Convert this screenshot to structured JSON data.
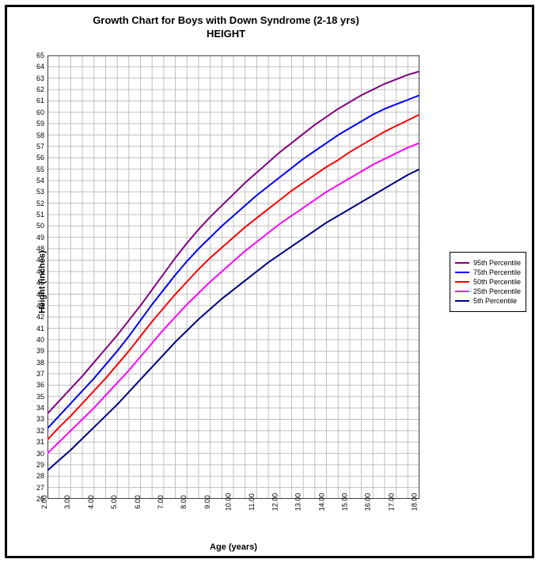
{
  "title_line1": "Growth Chart for Boys with Down Syndrome (2-18 yrs)",
  "title_line2": "HEIGHT",
  "xlabel": "Age (years)",
  "ylabel": "Height (inches)",
  "chart": {
    "type": "line",
    "background_color": "#ffffff",
    "grid_color": "#c0c0c0",
    "axis_color": "#000000",
    "line_width": 2,
    "xlim": [
      2,
      18
    ],
    "ylim": [
      26,
      65
    ],
    "xtick_step_major": 1,
    "xtick_step_minor": 0.5,
    "ytick_step_major": 1,
    "ytick_step_minor": 1,
    "title_fontsize": 13,
    "label_fontsize": 11,
    "tick_fontsize": 9,
    "x_tick_labels": [
      "2.00",
      "3.00",
      "4.00",
      "5.00",
      "6.00",
      "7.00",
      "8.00",
      "9.00",
      "10.00",
      "11.00",
      "12.00",
      "13.00",
      "14.00",
      "15.00",
      "16.00",
      "17.00",
      "18.00"
    ],
    "y_tick_labels": [
      "26",
      "27",
      "28",
      "29",
      "30",
      "31",
      "32",
      "33",
      "34",
      "35",
      "36",
      "37",
      "38",
      "39",
      "40",
      "41",
      "42",
      "43",
      "44",
      "45",
      "46",
      "47",
      "48",
      "49",
      "50",
      "51",
      "52",
      "53",
      "54",
      "55",
      "56",
      "57",
      "58",
      "59",
      "60",
      "61",
      "62",
      "63",
      "64",
      "65"
    ],
    "series": [
      {
        "name": "95th Percentile",
        "color": "#800080",
        "x": [
          2,
          2.5,
          3,
          3.5,
          4,
          4.5,
          5,
          5.5,
          6,
          6.5,
          7,
          7.5,
          8,
          8.5,
          9,
          9.5,
          10,
          10.5,
          11,
          11.5,
          12,
          12.5,
          13,
          13.5,
          14,
          14.5,
          15,
          15.5,
          16,
          16.5,
          17,
          17.5,
          18
        ],
        "y": [
          33.5,
          34.6,
          35.7,
          36.8,
          38.0,
          39.2,
          40.4,
          41.7,
          43.0,
          44.4,
          45.8,
          47.2,
          48.5,
          49.7,
          50.8,
          51.8,
          52.8,
          53.8,
          54.7,
          55.6,
          56.5,
          57.3,
          58.1,
          58.9,
          59.6,
          60.3,
          60.9,
          61.5,
          62.0,
          62.5,
          62.9,
          63.3,
          63.6
        ]
      },
      {
        "name": "75th Percentile",
        "color": "#0000ff",
        "x": [
          2,
          2.5,
          3,
          3.5,
          4,
          4.5,
          5,
          5.5,
          6,
          6.5,
          7,
          7.5,
          8,
          8.5,
          9,
          9.5,
          10,
          10.5,
          11,
          11.5,
          12,
          12.5,
          13,
          13.5,
          14,
          14.5,
          15,
          15.5,
          16,
          16.5,
          17,
          17.5,
          18
        ],
        "y": [
          32.2,
          33.3,
          34.4,
          35.5,
          36.6,
          37.8,
          39.0,
          40.3,
          41.7,
          43.1,
          44.4,
          45.7,
          46.9,
          48.0,
          49.0,
          50.0,
          50.9,
          51.8,
          52.7,
          53.5,
          54.3,
          55.1,
          55.9,
          56.6,
          57.3,
          58.0,
          58.6,
          59.2,
          59.8,
          60.3,
          60.7,
          61.1,
          61.5
        ]
      },
      {
        "name": "50th Percentile",
        "color": "#ff0000",
        "x": [
          2,
          2.5,
          3,
          3.5,
          4,
          4.5,
          5,
          5.5,
          6,
          6.5,
          7,
          7.5,
          8,
          8.5,
          9,
          9.5,
          10,
          10.5,
          11,
          11.5,
          12,
          12.5,
          13,
          13.5,
          14,
          14.5,
          15,
          15.5,
          16,
          16.5,
          17,
          17.5,
          18
        ],
        "y": [
          31.2,
          32.3,
          33.3,
          34.4,
          35.5,
          36.6,
          37.8,
          39.0,
          40.3,
          41.6,
          42.8,
          44.0,
          45.1,
          46.2,
          47.2,
          48.1,
          49.0,
          49.9,
          50.7,
          51.5,
          52.3,
          53.1,
          53.8,
          54.5,
          55.2,
          55.8,
          56.5,
          57.1,
          57.7,
          58.3,
          58.8,
          59.3,
          59.8
        ]
      },
      {
        "name": "25th Percentile",
        "color": "#ff00ff",
        "x": [
          2,
          2.5,
          3,
          3.5,
          4,
          4.5,
          5,
          5.5,
          6,
          6.5,
          7,
          7.5,
          8,
          8.5,
          9,
          9.5,
          10,
          10.5,
          11,
          11.5,
          12,
          12.5,
          13,
          13.5,
          14,
          14.5,
          15,
          15.5,
          16,
          16.5,
          17,
          17.5,
          18
        ],
        "y": [
          30.0,
          31.0,
          32.0,
          33.0,
          34.0,
          35.1,
          36.2,
          37.3,
          38.5,
          39.7,
          40.9,
          42.0,
          43.1,
          44.1,
          45.1,
          46.0,
          46.9,
          47.8,
          48.6,
          49.4,
          50.2,
          50.9,
          51.6,
          52.3,
          53.0,
          53.6,
          54.2,
          54.8,
          55.4,
          55.9,
          56.4,
          56.9,
          57.3
        ]
      },
      {
        "name": "5th Percentile",
        "color": "#000080",
        "x": [
          2,
          2.5,
          3,
          3.5,
          4,
          4.5,
          5,
          5.5,
          6,
          6.5,
          7,
          7.5,
          8,
          8.5,
          9,
          9.5,
          10,
          10.5,
          11,
          11.5,
          12,
          12.5,
          13,
          13.5,
          14,
          14.5,
          15,
          15.5,
          16,
          16.5,
          17,
          17.5,
          18
        ],
        "y": [
          28.5,
          29.4,
          30.3,
          31.3,
          32.3,
          33.3,
          34.3,
          35.4,
          36.5,
          37.6,
          38.7,
          39.8,
          40.8,
          41.8,
          42.7,
          43.6,
          44.4,
          45.2,
          46.0,
          46.8,
          47.5,
          48.2,
          48.9,
          49.6,
          50.3,
          50.9,
          51.5,
          52.1,
          52.7,
          53.3,
          53.9,
          54.5,
          55.0
        ]
      }
    ]
  },
  "legend": {
    "position": "right-middle",
    "border_color": "#000000",
    "fontsize": 9
  }
}
